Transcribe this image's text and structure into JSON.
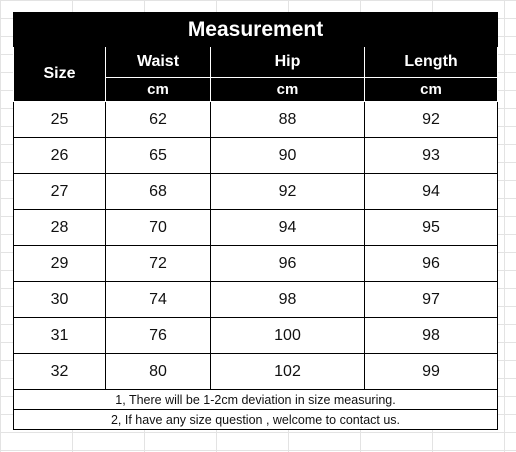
{
  "title": "Measurement",
  "headers": {
    "size": "Size",
    "waist": "Waist",
    "hip": "Hip",
    "length": "Length",
    "unit_waist": "cm",
    "unit_hip": "cm",
    "unit_length": "cm"
  },
  "rows": [
    {
      "size": "25",
      "waist": "62",
      "hip": "88",
      "length": "92"
    },
    {
      "size": "26",
      "waist": "65",
      "hip": "90",
      "length": "93"
    },
    {
      "size": "27",
      "waist": "68",
      "hip": "92",
      "length": "94"
    },
    {
      "size": "28",
      "waist": "70",
      "hip": "94",
      "length": "95"
    },
    {
      "size": "29",
      "waist": "72",
      "hip": "96",
      "length": "96"
    },
    {
      "size": "30",
      "waist": "74",
      "hip": "98",
      "length": "97"
    },
    {
      "size": "31",
      "waist": "76",
      "hip": "100",
      "length": "98"
    },
    {
      "size": "32",
      "waist": "80",
      "hip": "102",
      "length": "99"
    }
  ],
  "notes": [
    "1, There will be 1-2cm deviation in size measuring.",
    "2, If have any size question , welcome to contact us."
  ],
  "colors": {
    "header_bg": "#000000",
    "header_text": "#ffffff",
    "gridline": "#e3e3e3"
  }
}
